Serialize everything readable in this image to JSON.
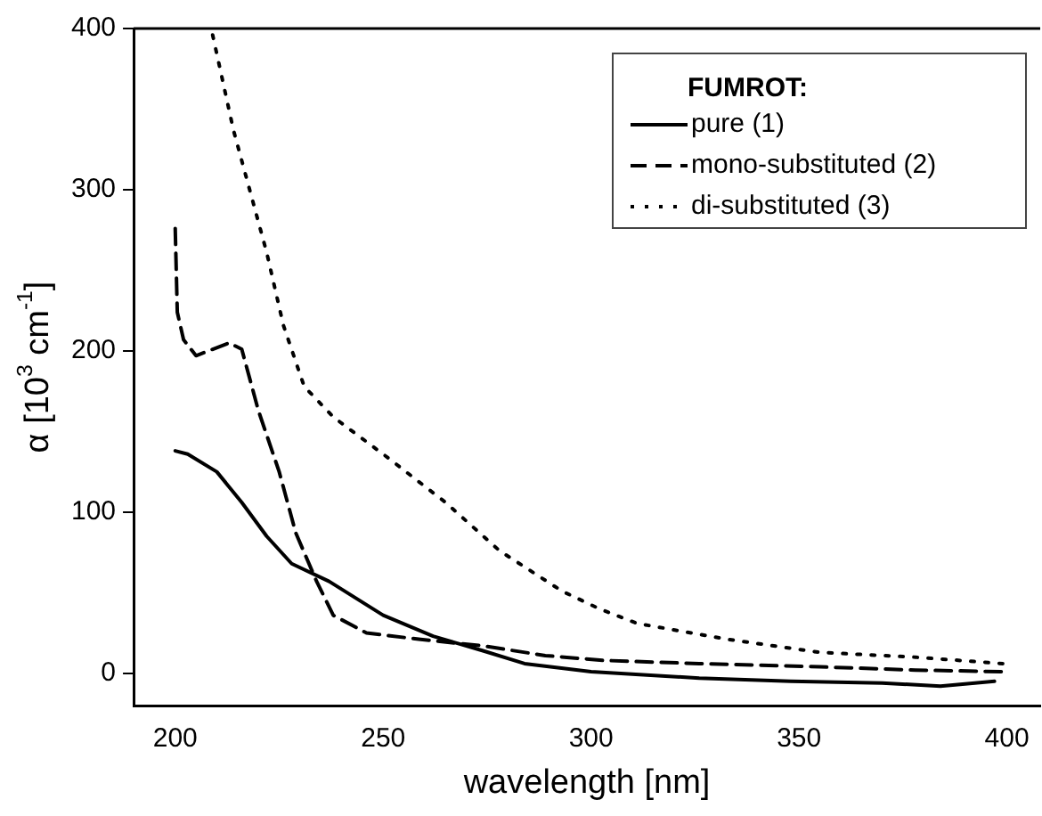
{
  "chart_data": {
    "type": "line",
    "xlabel": "wavelength [nm]",
    "ylabel": "α [10$^{3}$ cm$^{-1}$]",
    "legend_title": "FUMROT:",
    "legend": "top right",
    "grid": false,
    "marker": "none",
    "xlim": [
      190,
      408
    ],
    "xticks": [
      200,
      250,
      300,
      350,
      400
    ],
    "ylim": [
      -20,
      400
    ],
    "yticks": [
      0,
      100,
      200,
      300,
      400
    ],
    "series": [
      {
        "name": "pure (1)",
        "color": "#000000",
        "line_style": "solid",
        "x": [
          200,
          203,
          210,
          216,
          222,
          228,
          237,
          250,
          262,
          274,
          284,
          300,
          326,
          348,
          370,
          384,
          397
        ],
        "values": [
          138,
          136,
          125,
          106,
          85,
          68,
          57,
          36,
          23,
          14,
          6,
          1,
          -3,
          -5,
          -6,
          -8,
          -5
        ]
      },
      {
        "name": "mono-substituted (2)",
        "color": "#000000",
        "line_style": "dashed",
        "x": [
          200,
          200.5,
          202,
          205,
          213,
          216,
          220,
          225,
          229,
          234,
          238,
          246,
          259,
          274,
          289,
          303,
          326,
          355,
          378,
          399
        ],
        "values": [
          276,
          224,
          207,
          197,
          205,
          201,
          163,
          125,
          87,
          57,
          36,
          25,
          21,
          17,
          11,
          8,
          6,
          4,
          2,
          1
        ]
      },
      {
        "name": "di-substituted (3)",
        "color": "#000000",
        "line_style": "dotted",
        "x": [
          209,
          214,
          218,
          222,
          226,
          231,
          238,
          251,
          265,
          278,
          293,
          302,
          311,
          333,
          355,
          378,
          399
        ],
        "values": [
          396,
          337,
          299,
          261,
          216,
          178,
          159,
          134,
          106,
          76,
          51,
          40,
          31,
          21,
          13,
          10,
          6
        ]
      }
    ]
  }
}
